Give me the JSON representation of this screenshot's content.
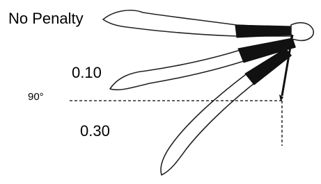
{
  "labels": {
    "no_penalty": "No Penalty",
    "small_penalty": "0.10",
    "angle": "90°",
    "large_penalty": "0.30"
  }
}
